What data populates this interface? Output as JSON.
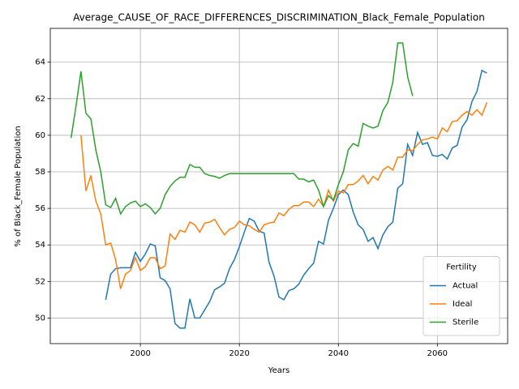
{
  "chart_data": {
    "type": "line",
    "title": "Average_CAUSE_OF_RACE_DIFFERENCES_DISCRIMINATION_Black_Female_Population",
    "xlabel": "Years",
    "ylabel": "% of Black_Female Population",
    "x": [
      1986,
      1987,
      1988,
      1989,
      1990,
      1991,
      1992,
      1993,
      1994,
      1995,
      1996,
      1997,
      1998,
      1999,
      2000,
      2001,
      2002,
      2003,
      2004,
      2005,
      2006,
      2007,
      2008,
      2009,
      2010,
      2011,
      2012,
      2013,
      2014,
      2015,
      2016,
      2017,
      2018,
      2019,
      2020,
      2021,
      2022,
      2023,
      2024,
      2025,
      2026,
      2027,
      2028,
      2029,
      2030,
      2031,
      2032,
      2033,
      2034,
      2035,
      2036,
      2037,
      2038,
      2039,
      2040,
      2041,
      2042,
      2043,
      2044,
      2045,
      2046,
      2047,
      2048,
      2049,
      2050,
      2051,
      2052,
      2053,
      2054,
      2055,
      2056,
      2057,
      2058,
      2059,
      2060,
      2061,
      2062,
      2063,
      2064,
      2065,
      2066,
      2067,
      2068,
      2069,
      2070
    ],
    "series": [
      {
        "name": "Actual",
        "color": "#1f77b4",
        "values": [
          null,
          null,
          null,
          null,
          null,
          null,
          null,
          51.0,
          52.4,
          52.7,
          52.75,
          52.75,
          52.75,
          53.6,
          53.1,
          53.5,
          54.05,
          53.95,
          52.2,
          52.05,
          51.6,
          49.7,
          49.45,
          49.45,
          51.05,
          50.0,
          50.0,
          50.45,
          50.9,
          51.55,
          51.7,
          51.9,
          52.7,
          53.2,
          53.9,
          54.7,
          55.45,
          55.3,
          54.75,
          54.65,
          53.05,
          52.3,
          51.15,
          51.0,
          51.5,
          51.6,
          51.85,
          52.35,
          52.7,
          53.0,
          54.2,
          54.05,
          55.35,
          56.0,
          56.75,
          57.0,
          56.75,
          55.8,
          55.1,
          54.85,
          54.2,
          54.4,
          53.8,
          54.55,
          55.0,
          55.25,
          57.1,
          57.35,
          59.5,
          58.9,
          60.15,
          59.5,
          59.6,
          58.9,
          58.85,
          58.95,
          58.7,
          59.3,
          59.45,
          60.45,
          60.85,
          61.85,
          62.4,
          63.55,
          63.4
        ]
      },
      {
        "name": "Ideal",
        "color": "#ff7f0e",
        "values": [
          null,
          null,
          60.0,
          56.95,
          57.8,
          56.4,
          55.7,
          54.0,
          54.1,
          53.2,
          51.6,
          52.4,
          52.6,
          53.3,
          52.6,
          52.8,
          53.3,
          53.3,
          52.7,
          52.85,
          54.6,
          54.3,
          54.8,
          54.7,
          55.25,
          55.1,
          54.7,
          55.2,
          55.25,
          55.4,
          54.95,
          54.55,
          54.85,
          54.95,
          55.3,
          55.1,
          55.05,
          54.85,
          54.7,
          55.1,
          55.2,
          55.25,
          55.75,
          55.6,
          55.95,
          56.15,
          56.15,
          56.35,
          56.35,
          56.1,
          56.5,
          56.1,
          57.0,
          56.4,
          56.95,
          56.85,
          57.3,
          57.3,
          57.5,
          57.8,
          57.35,
          57.75,
          57.55,
          58.1,
          58.3,
          58.1,
          58.8,
          58.8,
          59.2,
          59.15,
          59.5,
          59.75,
          59.8,
          59.9,
          59.8,
          60.4,
          60.2,
          60.75,
          60.8,
          61.1,
          61.3,
          61.1,
          61.4,
          61.1,
          61.8
        ]
      },
      {
        "name": "Sterile",
        "color": "#2ca02c",
        "values": [
          59.85,
          61.6,
          63.5,
          61.2,
          60.9,
          59.2,
          58.0,
          56.2,
          56.05,
          56.55,
          55.7,
          56.1,
          56.3,
          56.4,
          56.1,
          56.25,
          56.05,
          55.7,
          56.0,
          56.75,
          57.2,
          57.5,
          57.7,
          57.7,
          58.4,
          58.25,
          58.25,
          57.9,
          57.8,
          57.75,
          57.65,
          57.8,
          57.9,
          57.9,
          57.9,
          57.9,
          57.9,
          57.9,
          57.9,
          57.9,
          57.9,
          57.9,
          57.9,
          57.9,
          57.9,
          57.9,
          57.6,
          57.6,
          57.45,
          57.55,
          57.0,
          56.1,
          56.7,
          56.45,
          57.3,
          58.0,
          59.2,
          59.55,
          59.4,
          60.65,
          60.5,
          60.4,
          60.5,
          61.35,
          61.8,
          62.9,
          65.05,
          65.05,
          63.2,
          62.15,
          null,
          null,
          null,
          null,
          null,
          null,
          null,
          null,
          null,
          null,
          null,
          null,
          null,
          null,
          null
        ]
      }
    ],
    "xlim": [
      1981.8,
      2074.2
    ],
    "ylim": [
      48.6,
      65.85
    ],
    "xticks": [
      2000,
      2020,
      2040,
      2060
    ],
    "yticks": [
      50,
      52,
      54,
      56,
      58,
      60,
      62,
      64
    ],
    "grid": true,
    "legend_title": "Fertility",
    "legend_loc": "lower right"
  }
}
